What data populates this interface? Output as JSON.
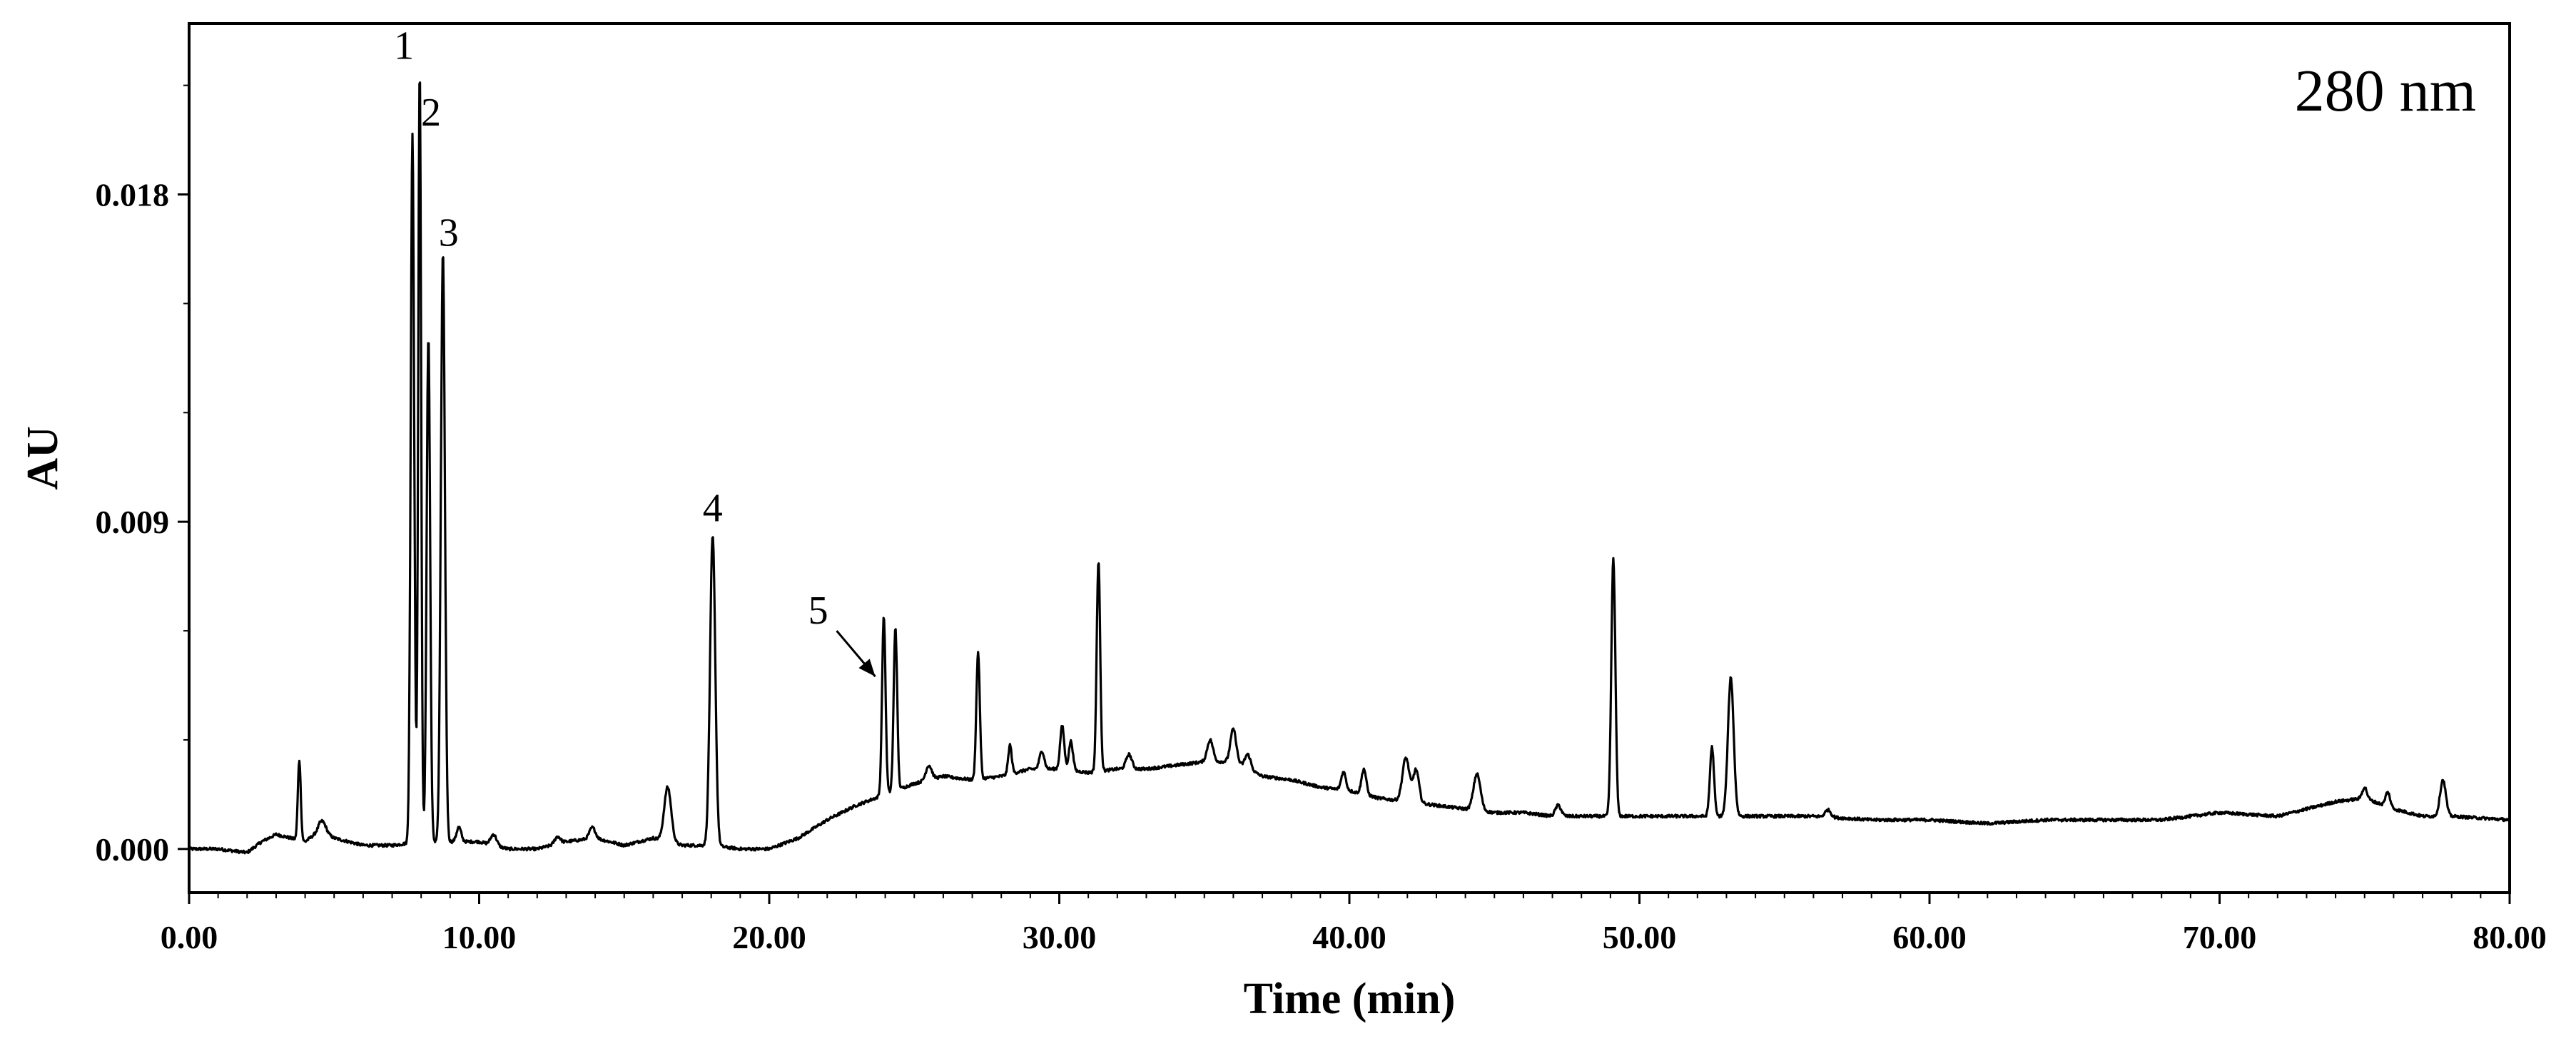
{
  "chart_data": {
    "type": "line",
    "title": "",
    "annotation_text": "280 nm",
    "xlabel": "Time (min)",
    "ylabel": "AU",
    "xlim": [
      0,
      80
    ],
    "ylim": [
      -0.0012,
      0.0227
    ],
    "x_ticks": [
      0,
      10,
      20,
      30,
      40,
      50,
      60,
      70,
      80
    ],
    "x_tick_labels": [
      "0.00",
      "10.00",
      "20.00",
      "30.00",
      "40.00",
      "50.00",
      "60.00",
      "70.00",
      "80.00"
    ],
    "y_ticks": [
      0,
      0.009,
      0.018
    ],
    "y_tick_labels": [
      "0.000",
      "0.009",
      "0.018"
    ],
    "grid": false,
    "baseline": [
      [
        0,
        0.0
      ],
      [
        1,
        0.0
      ],
      [
        2,
        -0.0001
      ],
      [
        2.5,
        0.0002
      ],
      [
        3,
        0.0004
      ],
      [
        3.5,
        0.0003
      ],
      [
        4,
        0.0002
      ],
      [
        4.5,
        0.0005
      ],
      [
        5,
        0.0003
      ],
      [
        6,
        0.0001
      ],
      [
        7,
        0.0001
      ],
      [
        8,
        0.0002
      ],
      [
        9,
        0.0002
      ],
      [
        10,
        0.0002
      ],
      [
        11,
        0.0
      ],
      [
        12,
        0.0
      ],
      [
        13,
        0.0002
      ],
      [
        14,
        0.0003
      ],
      [
        15,
        0.0001
      ],
      [
        16,
        0.0003
      ],
      [
        17,
        0.0001
      ],
      [
        18,
        0.0001
      ],
      [
        19,
        0.0
      ],
      [
        20,
        0.0
      ],
      [
        21,
        0.0003
      ],
      [
        22,
        0.0008
      ],
      [
        23,
        0.0012
      ],
      [
        24,
        0.0015
      ],
      [
        25,
        0.0018
      ],
      [
        26,
        0.002
      ],
      [
        27,
        0.0019
      ],
      [
        28,
        0.002
      ],
      [
        29,
        0.0022
      ],
      [
        30,
        0.0022
      ],
      [
        31,
        0.0021
      ],
      [
        32,
        0.0022
      ],
      [
        33,
        0.0022
      ],
      [
        34,
        0.0023
      ],
      [
        35,
        0.0024
      ],
      [
        36,
        0.0024
      ],
      [
        37,
        0.002
      ],
      [
        38,
        0.0019
      ],
      [
        39,
        0.0017
      ],
      [
        40,
        0.0016
      ],
      [
        41,
        0.0014
      ],
      [
        42,
        0.0013
      ],
      [
        43,
        0.0012
      ],
      [
        44,
        0.0011
      ],
      [
        45,
        0.001
      ],
      [
        46,
        0.001
      ],
      [
        47,
        0.0009
      ],
      [
        48,
        0.0009
      ],
      [
        50,
        0.0009
      ],
      [
        52,
        0.0009
      ],
      [
        54,
        0.0009
      ],
      [
        56,
        0.0009
      ],
      [
        58,
        0.0008
      ],
      [
        60,
        0.0008
      ],
      [
        62,
        0.0007
      ],
      [
        64,
        0.0008
      ],
      [
        66,
        0.0008
      ],
      [
        68,
        0.0008
      ],
      [
        70,
        0.001
      ],
      [
        72,
        0.0009
      ],
      [
        73,
        0.0011
      ],
      [
        74,
        0.0013
      ],
      [
        75,
        0.0014
      ],
      [
        76,
        0.0011
      ],
      [
        77,
        0.0009
      ],
      [
        78,
        0.0009
      ],
      [
        80,
        0.0008
      ]
    ],
    "peaks": [
      {
        "t": 3.8,
        "h": 0.0022,
        "w": 0.05
      },
      {
        "t": 4.6,
        "h": 0.0003,
        "w": 0.12
      },
      {
        "t": 7.7,
        "h": 0.0195,
        "w": 0.06
      },
      {
        "t": 7.95,
        "h": 0.0213,
        "w": 0.05
      },
      {
        "t": 8.25,
        "h": 0.0139,
        "w": 0.06
      },
      {
        "t": 8.75,
        "h": 0.0162,
        "w": 0.07
      },
      {
        "t": 9.3,
        "h": 0.0004,
        "w": 0.08
      },
      {
        "t": 10.5,
        "h": 0.0003,
        "w": 0.1
      },
      {
        "t": 12.7,
        "h": 0.0002,
        "w": 0.1
      },
      {
        "t": 13.9,
        "h": 0.0003,
        "w": 0.1
      },
      {
        "t": 16.5,
        "h": 0.0015,
        "w": 0.12
      },
      {
        "t": 18.05,
        "h": 0.0085,
        "w": 0.09
      },
      {
        "t": 23.95,
        "h": 0.0049,
        "w": 0.06
      },
      {
        "t": 24.35,
        "h": 0.0045,
        "w": 0.06
      },
      {
        "t": 25.5,
        "h": 0.0004,
        "w": 0.1
      },
      {
        "t": 27.2,
        "h": 0.0035,
        "w": 0.06
      },
      {
        "t": 28.3,
        "h": 0.0008,
        "w": 0.06
      },
      {
        "t": 29.4,
        "h": 0.0005,
        "w": 0.08
      },
      {
        "t": 30.1,
        "h": 0.0012,
        "w": 0.07
      },
      {
        "t": 30.4,
        "h": 0.0008,
        "w": 0.07
      },
      {
        "t": 31.35,
        "h": 0.0058,
        "w": 0.06
      },
      {
        "t": 32.4,
        "h": 0.0004,
        "w": 0.1
      },
      {
        "t": 35.2,
        "h": 0.0006,
        "w": 0.1
      },
      {
        "t": 36.0,
        "h": 0.0009,
        "w": 0.1
      },
      {
        "t": 36.5,
        "h": 0.0004,
        "w": 0.1
      },
      {
        "t": 39.8,
        "h": 0.0005,
        "w": 0.08
      },
      {
        "t": 40.5,
        "h": 0.0007,
        "w": 0.08
      },
      {
        "t": 41.95,
        "h": 0.0012,
        "w": 0.12
      },
      {
        "t": 42.3,
        "h": 0.0009,
        "w": 0.1
      },
      {
        "t": 44.4,
        "h": 0.001,
        "w": 0.12
      },
      {
        "t": 47.2,
        "h": 0.0003,
        "w": 0.1
      },
      {
        "t": 49.1,
        "h": 0.0071,
        "w": 0.07
      },
      {
        "t": 52.5,
        "h": 0.0019,
        "w": 0.07
      },
      {
        "t": 53.15,
        "h": 0.0038,
        "w": 0.1
      },
      {
        "t": 56.5,
        "h": 0.0002,
        "w": 0.1
      },
      {
        "t": 75.0,
        "h": 0.0003,
        "w": 0.08
      },
      {
        "t": 75.8,
        "h": 0.0004,
        "w": 0.08
      },
      {
        "t": 77.7,
        "h": 0.001,
        "w": 0.1
      }
    ],
    "peak_labels": [
      {
        "text": "1",
        "t": 7.95,
        "au": 0.0213
      },
      {
        "text": "2",
        "t": 7.7,
        "au": 0.0195
      },
      {
        "text": "3",
        "t": 8.75,
        "au": 0.0162
      },
      {
        "text": "4",
        "t": 18.05,
        "au": 0.0085
      },
      {
        "text": "5",
        "t": 23.95,
        "au": 0.0049,
        "arrow": true
      }
    ]
  }
}
